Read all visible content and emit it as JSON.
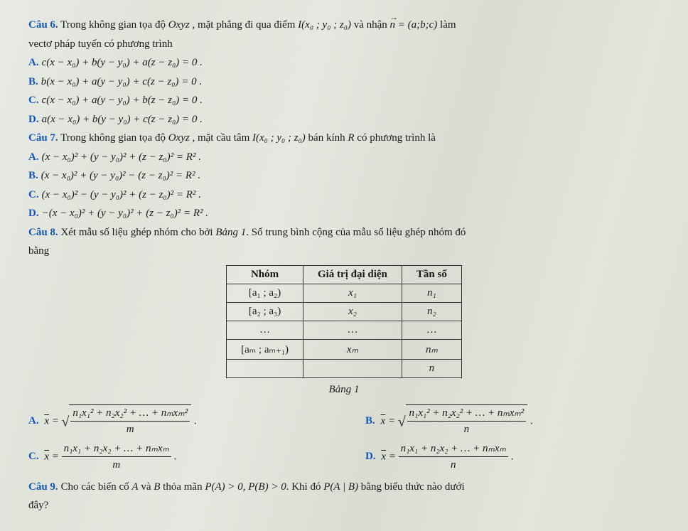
{
  "q6": {
    "label": "Câu 6.",
    "text1": "Trong không gian tọa độ ",
    "var1": "Oxyz",
    "text2": " , mặt phẳng đi qua điểm ",
    "point": "I(x₀ ; y₀ ; z₀)",
    "text3": " và nhận ",
    "vec": "n",
    "vecval": " = (a;b;c)",
    "text4": " làm",
    "text5": "vectơ pháp tuyến có phương trình",
    "opts": {
      "A": "c(x − x₀) + b(y − y₀) + a(z − z₀) = 0 .",
      "B": "b(x − x₀) + a(y − y₀) + c(z − z₀) = 0 .",
      "C": "c(x − x₀) + a(y − y₀) + b(z − z₀) = 0 .",
      "D": "a(x − x₀) + b(y − y₀) + c(z − z₀) = 0 ."
    }
  },
  "q7": {
    "label": "Câu 7.",
    "text1": "Trong không gian tọa độ ",
    "var1": "Oxyz",
    "text2": " , mặt cầu tâm ",
    "point": "I(x₀ ; y₀ ; z₀)",
    "text3": " bán kính ",
    "R": "R",
    "text4": " có phương trình là",
    "opts": {
      "A": "(x − x₀)² + (y − y₀)² + (z − z₀)² = R² .",
      "B": "(x − x₀)² + (y − y₀)² − (z − z₀)² = R² .",
      "C": "(x − x₀)² − (y − y₀)² + (z − z₀)² = R² .",
      "D": "−(x − x₀)² + (y − y₀)² + (z − z₀)² = R² ."
    }
  },
  "q8": {
    "label": "Câu 8.",
    "text1": "Xét mẫu số liệu ghép nhóm cho bởi ",
    "bang": "Bảng 1",
    "text2": ". Số trung bình cộng của mẫu số liệu ghép nhóm đó",
    "text3": "bằng",
    "table": {
      "headers": [
        "Nhóm",
        "Giá trị đại diện",
        "Tần số"
      ],
      "rows": [
        [
          "[a₁ ; a₂)",
          "x₁",
          "n₁"
        ],
        [
          "[a₂ ; a₃)",
          "x₂",
          "n₂"
        ],
        [
          "…",
          "…",
          "…"
        ],
        [
          "[aₘ ; aₘ₊₁)",
          "xₘ",
          "nₘ"
        ],
        [
          "",
          "",
          "n"
        ]
      ]
    },
    "caption": "Bảng 1",
    "opt_A_num": "n₁x₁² + n₂x₂² + … + nₘxₘ²",
    "opt_A_den": "m",
    "opt_B_num": "n₁x₁² + n₂x₂² + … + nₘxₘ²",
    "opt_B_den": "n",
    "opt_C_num": "n₁x₁ + n₂x₂ + … + nₘxₘ",
    "opt_C_den": "m",
    "opt_D_num": "n₁x₁ + n₂x₂ + … + nₘxₘ",
    "opt_D_den": "n"
  },
  "q9": {
    "label": "Câu 9.",
    "text1": "Cho các biến cố ",
    "A": "A",
    "text2": " và ",
    "B": "B",
    "text3": " thỏa mãn ",
    "cond": "P(A) > 0, P(B) > 0",
    "text4": ". Khi đó ",
    "target": "P(A | B)",
    "text5": " bằng biểu thức nào dưới",
    "text6": "đây?"
  },
  "labels": {
    "A": "A.",
    "B": "B.",
    "C": "C.",
    "D": "D."
  },
  "xbar": "x̄ =",
  "dot": " ."
}
